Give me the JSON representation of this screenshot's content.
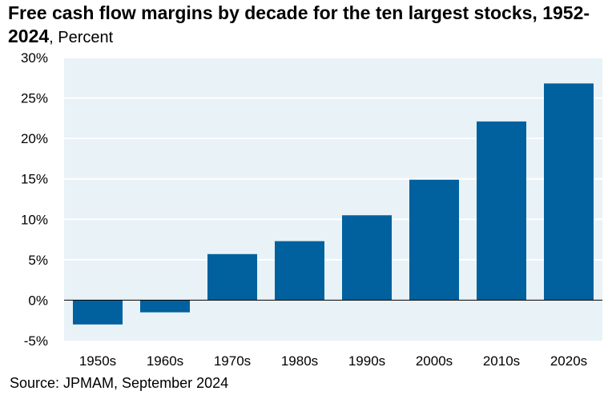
{
  "title": "Free cash flow margins by decade for the ten largest stocks, 1952-2024",
  "subtitle": ", Percent",
  "source": "Source: JPMAM, September 2024",
  "colors": {
    "bar": "#00619e",
    "plot_background": "#e8f2f7",
    "gridline": "#ffffff",
    "zero_line": "#000000"
  },
  "chart_data": {
    "type": "bar",
    "title": "Free cash flow margins by decade for the ten largest stocks, 1952-2024",
    "subtitle": "Percent",
    "categories": [
      "1950s",
      "1960s",
      "1970s",
      "1980s",
      "1990s",
      "2000s",
      "2010s",
      "2020s"
    ],
    "values": [
      -3.0,
      -1.5,
      5.7,
      7.3,
      10.5,
      14.9,
      22.1,
      26.8
    ],
    "ylim": [
      -5,
      30
    ],
    "yticks": [
      -5,
      0,
      5,
      10,
      15,
      20,
      25,
      30
    ],
    "ytick_labels": [
      "-5%",
      "0%",
      "5%",
      "10%",
      "15%",
      "20%",
      "25%",
      "30%"
    ],
    "xlabel": "",
    "ylabel": "",
    "grid": true,
    "legend": "none"
  }
}
